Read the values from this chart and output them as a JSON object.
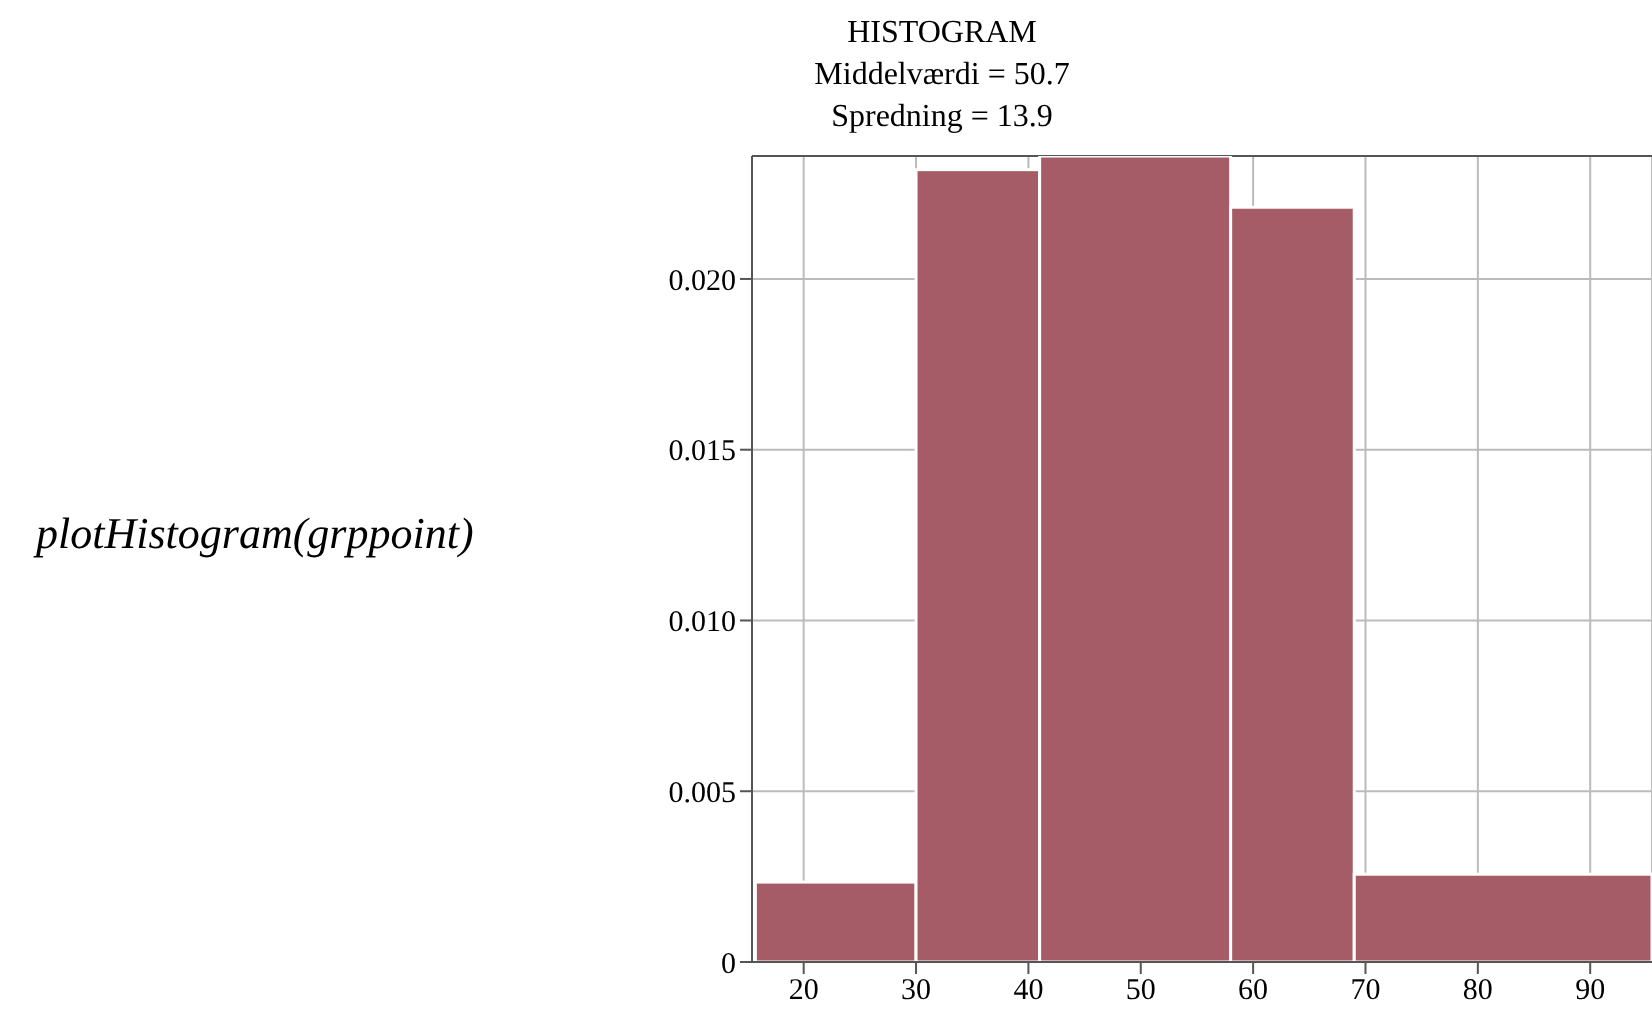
{
  "chart_data": {
    "type": "histogram",
    "title": "HISTOGRAM",
    "subtitle": "Middelværdi = 50.7\nSpredning = 13.9",
    "annotations": [
      "plotHistogram(grppoint)"
    ],
    "bins": [
      15.7,
      30,
      41,
      58,
      69,
      95.5
    ],
    "values": [
      0.00234,
      0.0232,
      0.0236,
      0.0221,
      0.00257
    ],
    "color": "#a65c66",
    "xlim": [
      15.4,
      95.5
    ],
    "xticks": [
      20,
      30,
      40,
      50,
      60,
      70,
      80,
      90
    ],
    "ylim": [
      0,
      0.0236
    ],
    "yticks": [
      0,
      0.005,
      {
        "value": 0.01,
        "label": "0.010"
      },
      0.015,
      {
        "value": 0.02,
        "label": "0.020"
      }
    ],
    "grid": true
  }
}
